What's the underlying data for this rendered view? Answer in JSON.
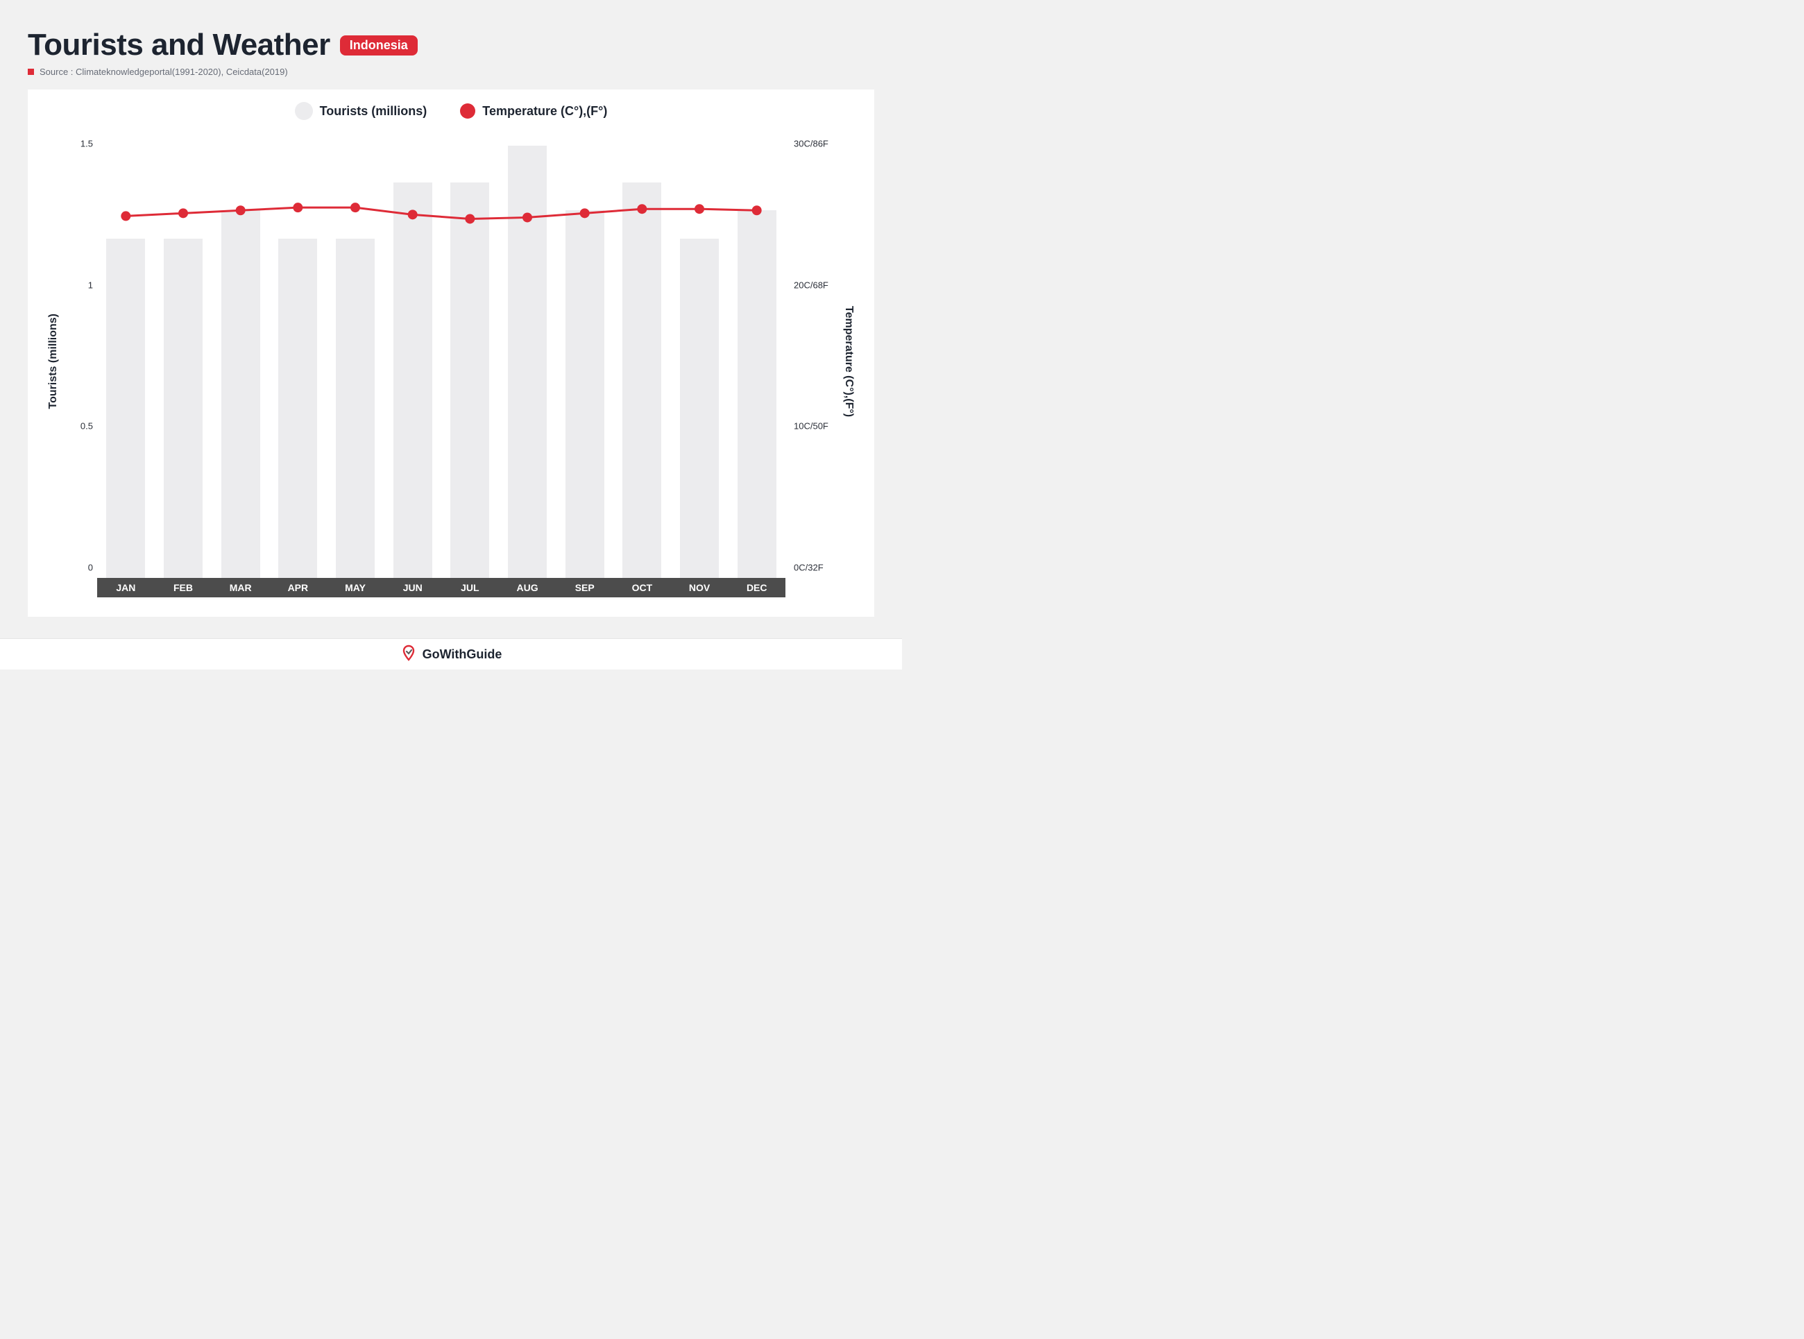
{
  "header": {
    "title": "Tourists and Weather",
    "badge": "Indonesia",
    "source_label": "Source : Climateknowledgeportal(1991-2020), Ceicdata(2019)"
  },
  "legend": {
    "bars_label": "Tourists (millions)",
    "line_label": "Temperature (C°),(F°)"
  },
  "chart": {
    "type": "bar+line",
    "background_color": "#ffffff",
    "bar_color": "#ececee",
    "line_color": "#de2b37",
    "marker_color": "#de2b37",
    "line_width": 3,
    "marker_radius": 7,
    "xaxis_band_color": "#4c4c4c",
    "months": [
      "JAN",
      "FEB",
      "MAR",
      "APR",
      "MAY",
      "JUN",
      "JUL",
      "AUG",
      "SEP",
      "OCT",
      "NOV",
      "DEC"
    ],
    "tourists_values": [
      1.2,
      1.2,
      1.3,
      1.2,
      1.2,
      1.4,
      1.4,
      1.53,
      1.3,
      1.4,
      1.2,
      1.3
    ],
    "temperature_c": [
      25.6,
      25.8,
      26.0,
      26.2,
      26.2,
      25.7,
      25.4,
      25.5,
      25.8,
      26.1,
      26.1,
      26.0
    ],
    "y_left": {
      "title": "Tourists (millions)",
      "min": 0,
      "max": 1.6,
      "ticks": [
        0,
        0.5,
        1,
        1.5
      ]
    },
    "y_right": {
      "title": "Temperature (C°),(F°)",
      "min": 0,
      "max": 32,
      "ticks": [
        "0C/32F",
        "10C/50F",
        "20C/68F",
        "30C/86F"
      ],
      "tick_values_c": [
        0,
        10,
        20,
        30
      ]
    }
  },
  "footer": {
    "brand": "GoWithGuide"
  },
  "colors": {
    "page_bg": "#f1f1f1",
    "text_dark": "#1d2430",
    "text_muted": "#676c77",
    "accent": "#de2b37"
  }
}
